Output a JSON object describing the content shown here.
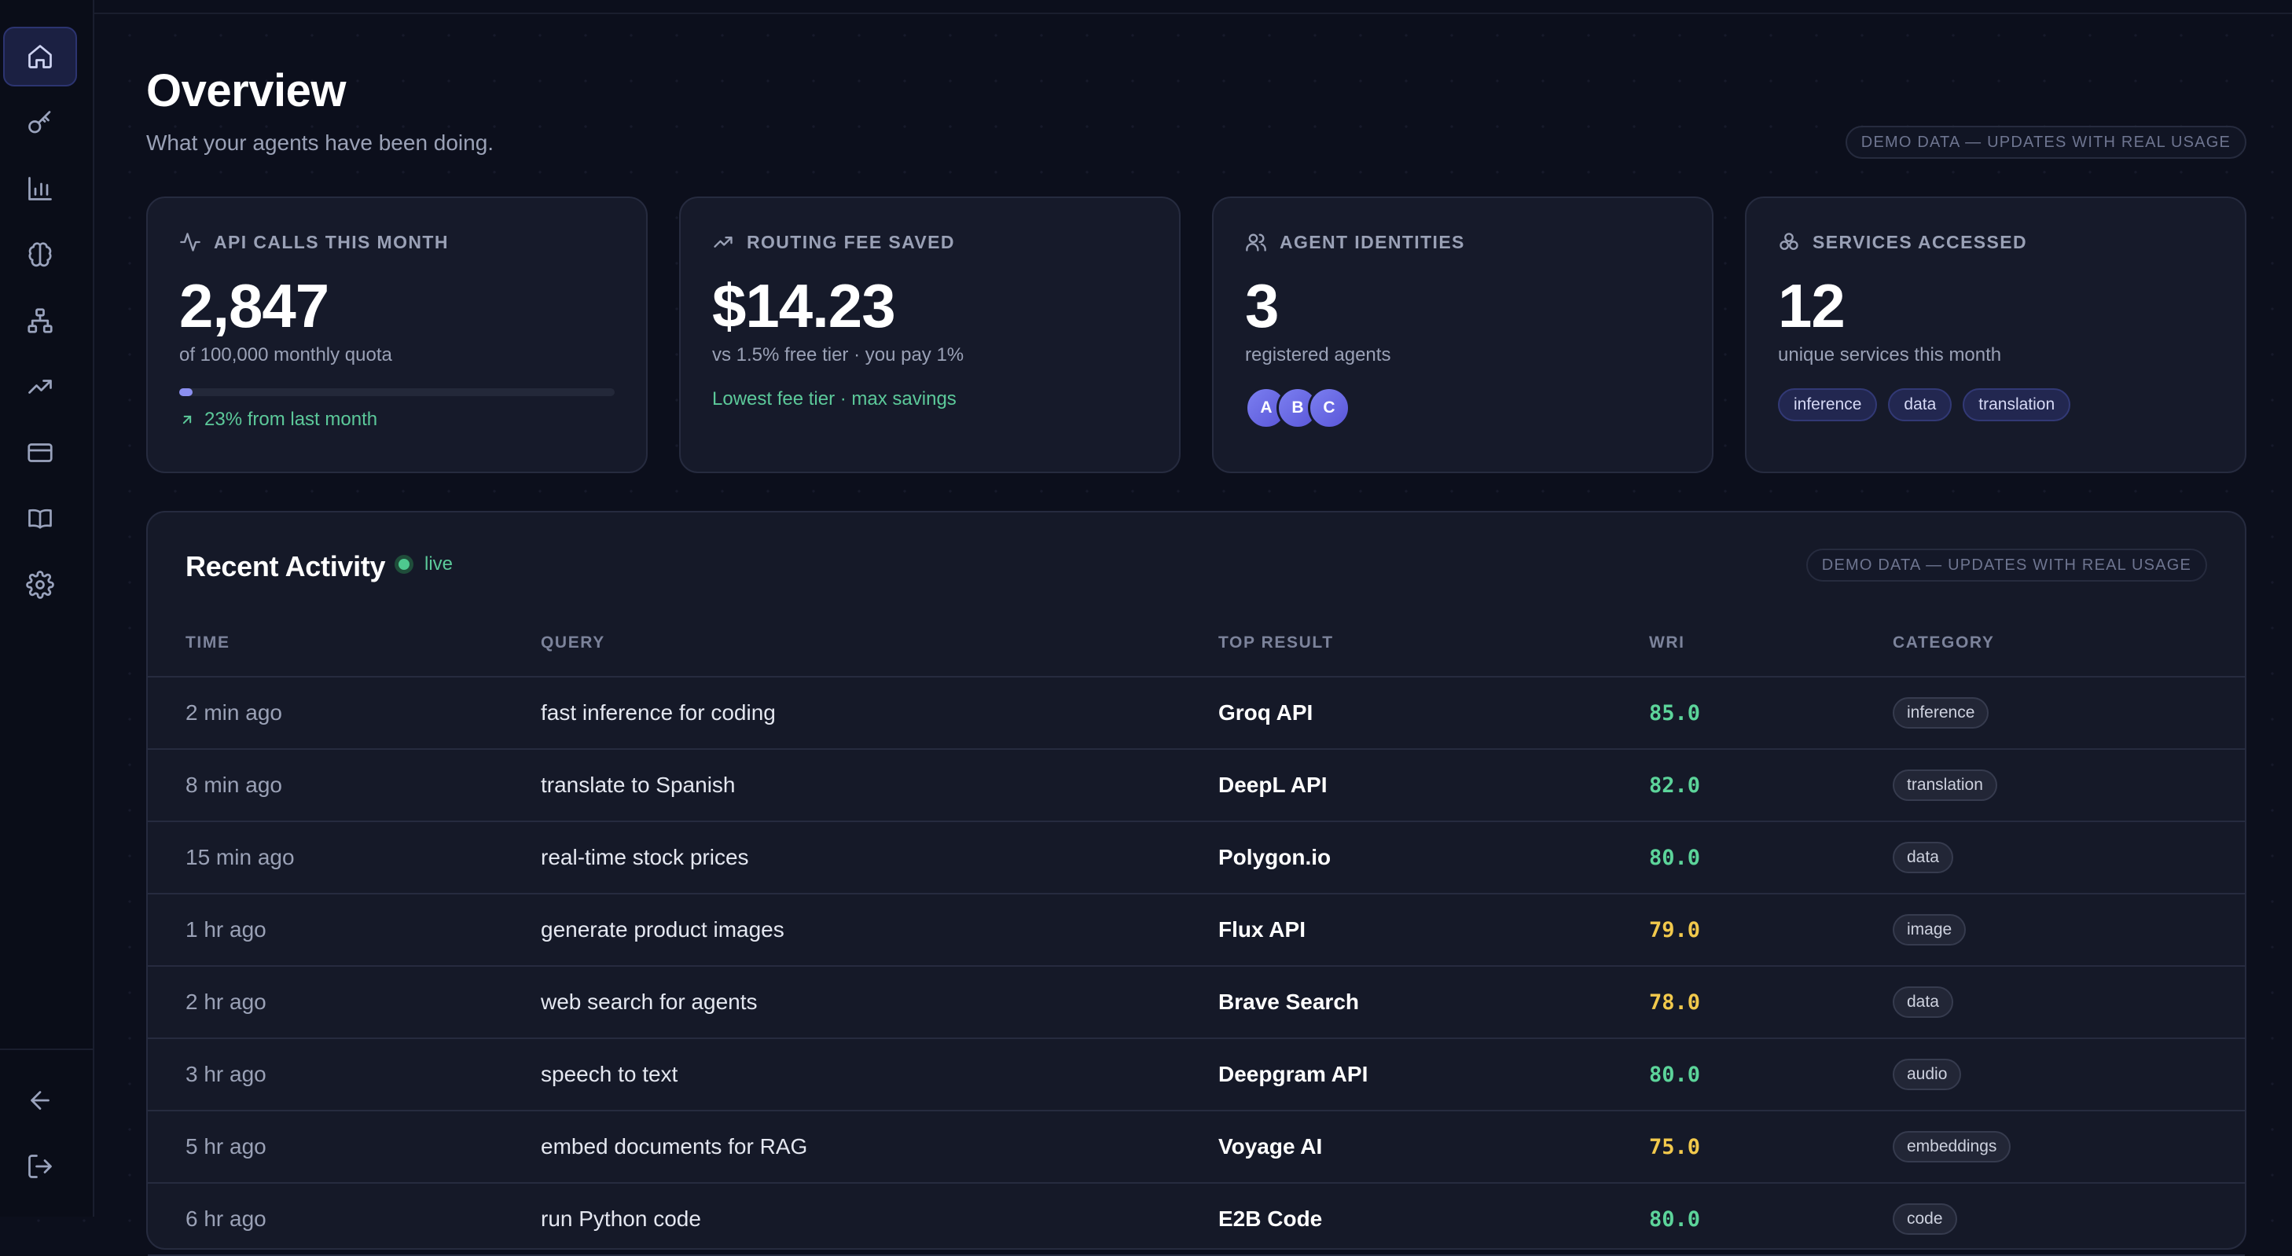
{
  "colors": {
    "background": "#0c0f1c",
    "card": "#161a2a",
    "accent": "#8b8ff0",
    "green": "#5cc99a",
    "yellow": "#f2c94c",
    "wri_green": "#5cd49a"
  },
  "sidebar": {
    "items": [
      {
        "icon": "home-icon",
        "active": true
      },
      {
        "icon": "key-icon",
        "active": false
      },
      {
        "icon": "bar-chart-icon",
        "active": false
      },
      {
        "icon": "brain-icon",
        "active": false
      },
      {
        "icon": "network-icon",
        "active": false
      },
      {
        "icon": "trending-up-icon",
        "active": false
      },
      {
        "icon": "credit-card-icon",
        "active": false
      },
      {
        "icon": "book-icon",
        "active": false
      },
      {
        "icon": "gear-icon",
        "active": false
      }
    ],
    "bottom": [
      {
        "icon": "arrow-left-icon"
      },
      {
        "icon": "logout-icon"
      }
    ]
  },
  "header": {
    "title": "Overview",
    "subtitle": "What your agents have been doing.",
    "demo_badge": "DEMO DATA — UPDATES WITH REAL USAGE"
  },
  "cards": {
    "api_calls": {
      "label": "API CALLS THIS MONTH",
      "icon": "activity-icon",
      "value": "2,847",
      "sub": "of 100,000 monthly quota",
      "progress_percent": 2.847,
      "trend": "23% from last month",
      "trend_icon": "arrow-up-right-icon"
    },
    "routing_fee": {
      "label": "ROUTING FEE SAVED",
      "icon": "trending-up-icon",
      "value": "$14.23",
      "sub": "vs 1.5% free tier · you pay 1%",
      "note": "Lowest fee tier · max savings"
    },
    "agents": {
      "label": "AGENT IDENTITIES",
      "icon": "users-icon",
      "value": "3",
      "sub": "registered agents",
      "avatars": [
        "A",
        "B",
        "C"
      ]
    },
    "services": {
      "label": "SERVICES ACCESSED",
      "icon": "boxes-icon",
      "value": "12",
      "sub": "unique services this month",
      "tags": [
        "inference",
        "data",
        "translation"
      ]
    }
  },
  "activity": {
    "title": "Recent Activity",
    "live_label": "live",
    "demo_badge": "DEMO DATA — UPDATES WITH REAL USAGE",
    "columns": [
      "TIME",
      "QUERY",
      "TOP RESULT",
      "WRI",
      "CATEGORY"
    ],
    "rows": [
      {
        "time": "2 min ago",
        "query": "fast inference for coding",
        "result": "Groq API",
        "wri": "85.0",
        "category": "inference"
      },
      {
        "time": "8 min ago",
        "query": "translate to Spanish",
        "result": "DeepL API",
        "wri": "82.0",
        "category": "translation"
      },
      {
        "time": "15 min ago",
        "query": "real-time stock prices",
        "result": "Polygon.io",
        "wri": "80.0",
        "category": "data"
      },
      {
        "time": "1 hr ago",
        "query": "generate product images",
        "result": "Flux API",
        "wri": "79.0",
        "category": "image"
      },
      {
        "time": "2 hr ago",
        "query": "web search for agents",
        "result": "Brave Search",
        "wri": "78.0",
        "category": "data"
      },
      {
        "time": "3 hr ago",
        "query": "speech to text",
        "result": "Deepgram API",
        "wri": "80.0",
        "category": "audio"
      },
      {
        "time": "5 hr ago",
        "query": "embed documents for RAG",
        "result": "Voyage AI",
        "wri": "75.0",
        "category": "embeddings"
      },
      {
        "time": "6 hr ago",
        "query": "run Python code",
        "result": "E2B Code",
        "wri": "80.0",
        "category": "code"
      }
    ]
  }
}
